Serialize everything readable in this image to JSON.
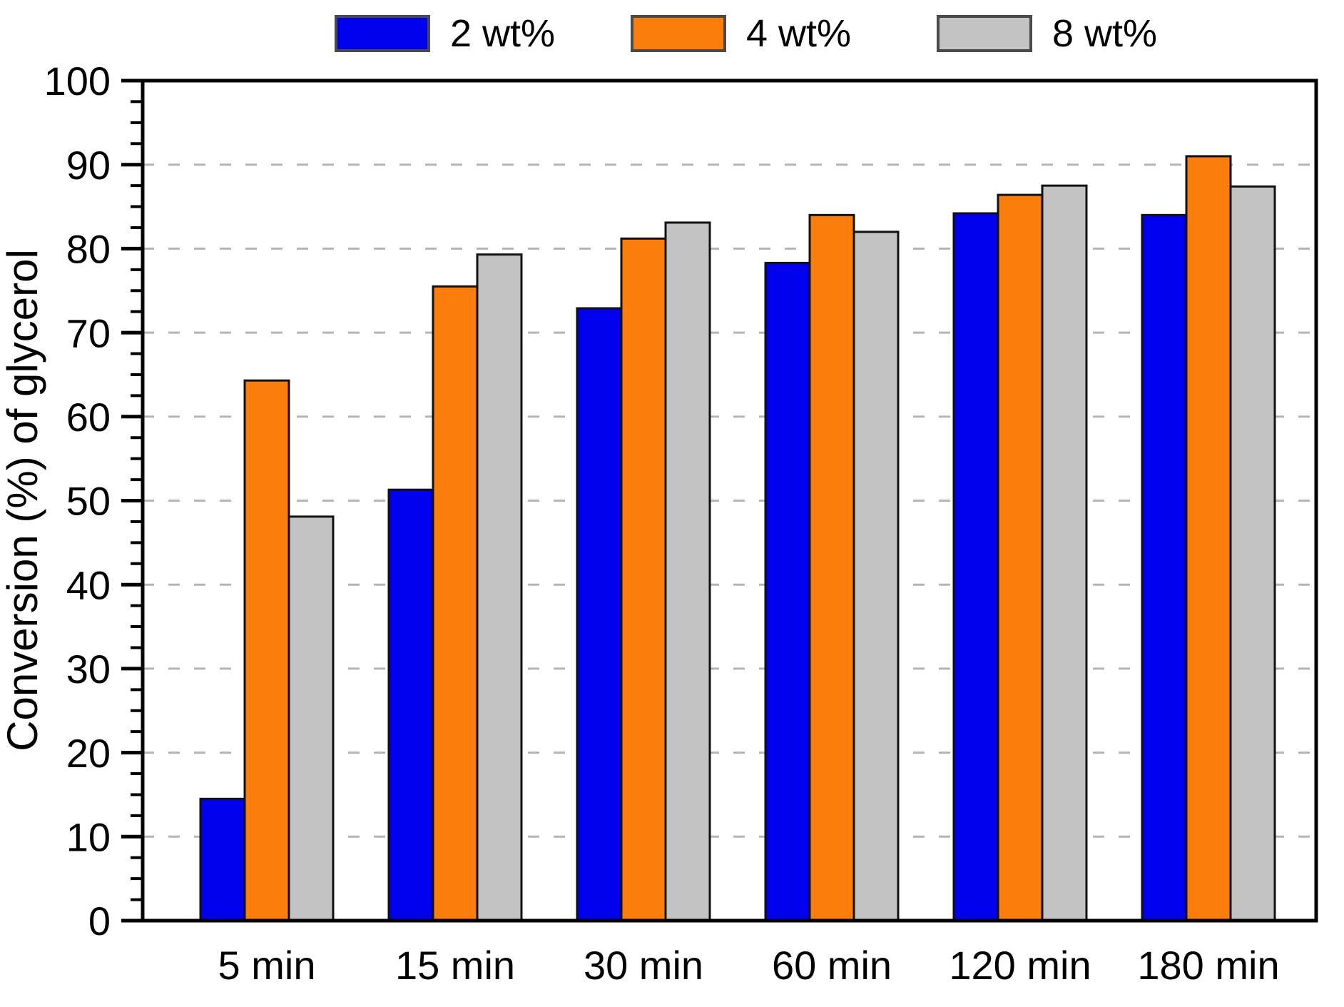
{
  "chart_data": {
    "type": "bar",
    "title": "",
    "xlabel": "",
    "ylabel": "Conversion (%) of glycerol",
    "ylim": [
      0,
      100
    ],
    "ytick_step": 10,
    "yminor_tick_step": 2.5,
    "grid": "horizontal, dashed, at 10..90",
    "legend_position": "top",
    "categories": [
      "5 min",
      "15 min",
      "30 min",
      "60 min",
      "120 min",
      "180 min"
    ],
    "series": [
      {
        "name": "2 wt%",
        "color": "#0000EF",
        "values": [
          14.5,
          51.3,
          72.9,
          78.3,
          84.2,
          84.0
        ]
      },
      {
        "name": "4 wt%",
        "color": "#FB7D0B",
        "values": [
          64.3,
          75.5,
          81.2,
          84.0,
          86.4,
          91.0
        ]
      },
      {
        "name": "8 wt%",
        "color": "#C3C3C3",
        "values": [
          48.1,
          79.3,
          83.1,
          82.0,
          87.5,
          87.4
        ]
      }
    ],
    "y_tick_labels": [
      "0",
      "10",
      "20",
      "30",
      "40",
      "50",
      "60",
      "70",
      "80",
      "90",
      "100"
    ],
    "colors": {
      "bar_border": "#111111",
      "gridline": "#b5b5b5",
      "axis": "#000000",
      "text": "#000000",
      "legend_swatch_border": "#4a4a4a",
      "background": "#ffffff"
    }
  }
}
